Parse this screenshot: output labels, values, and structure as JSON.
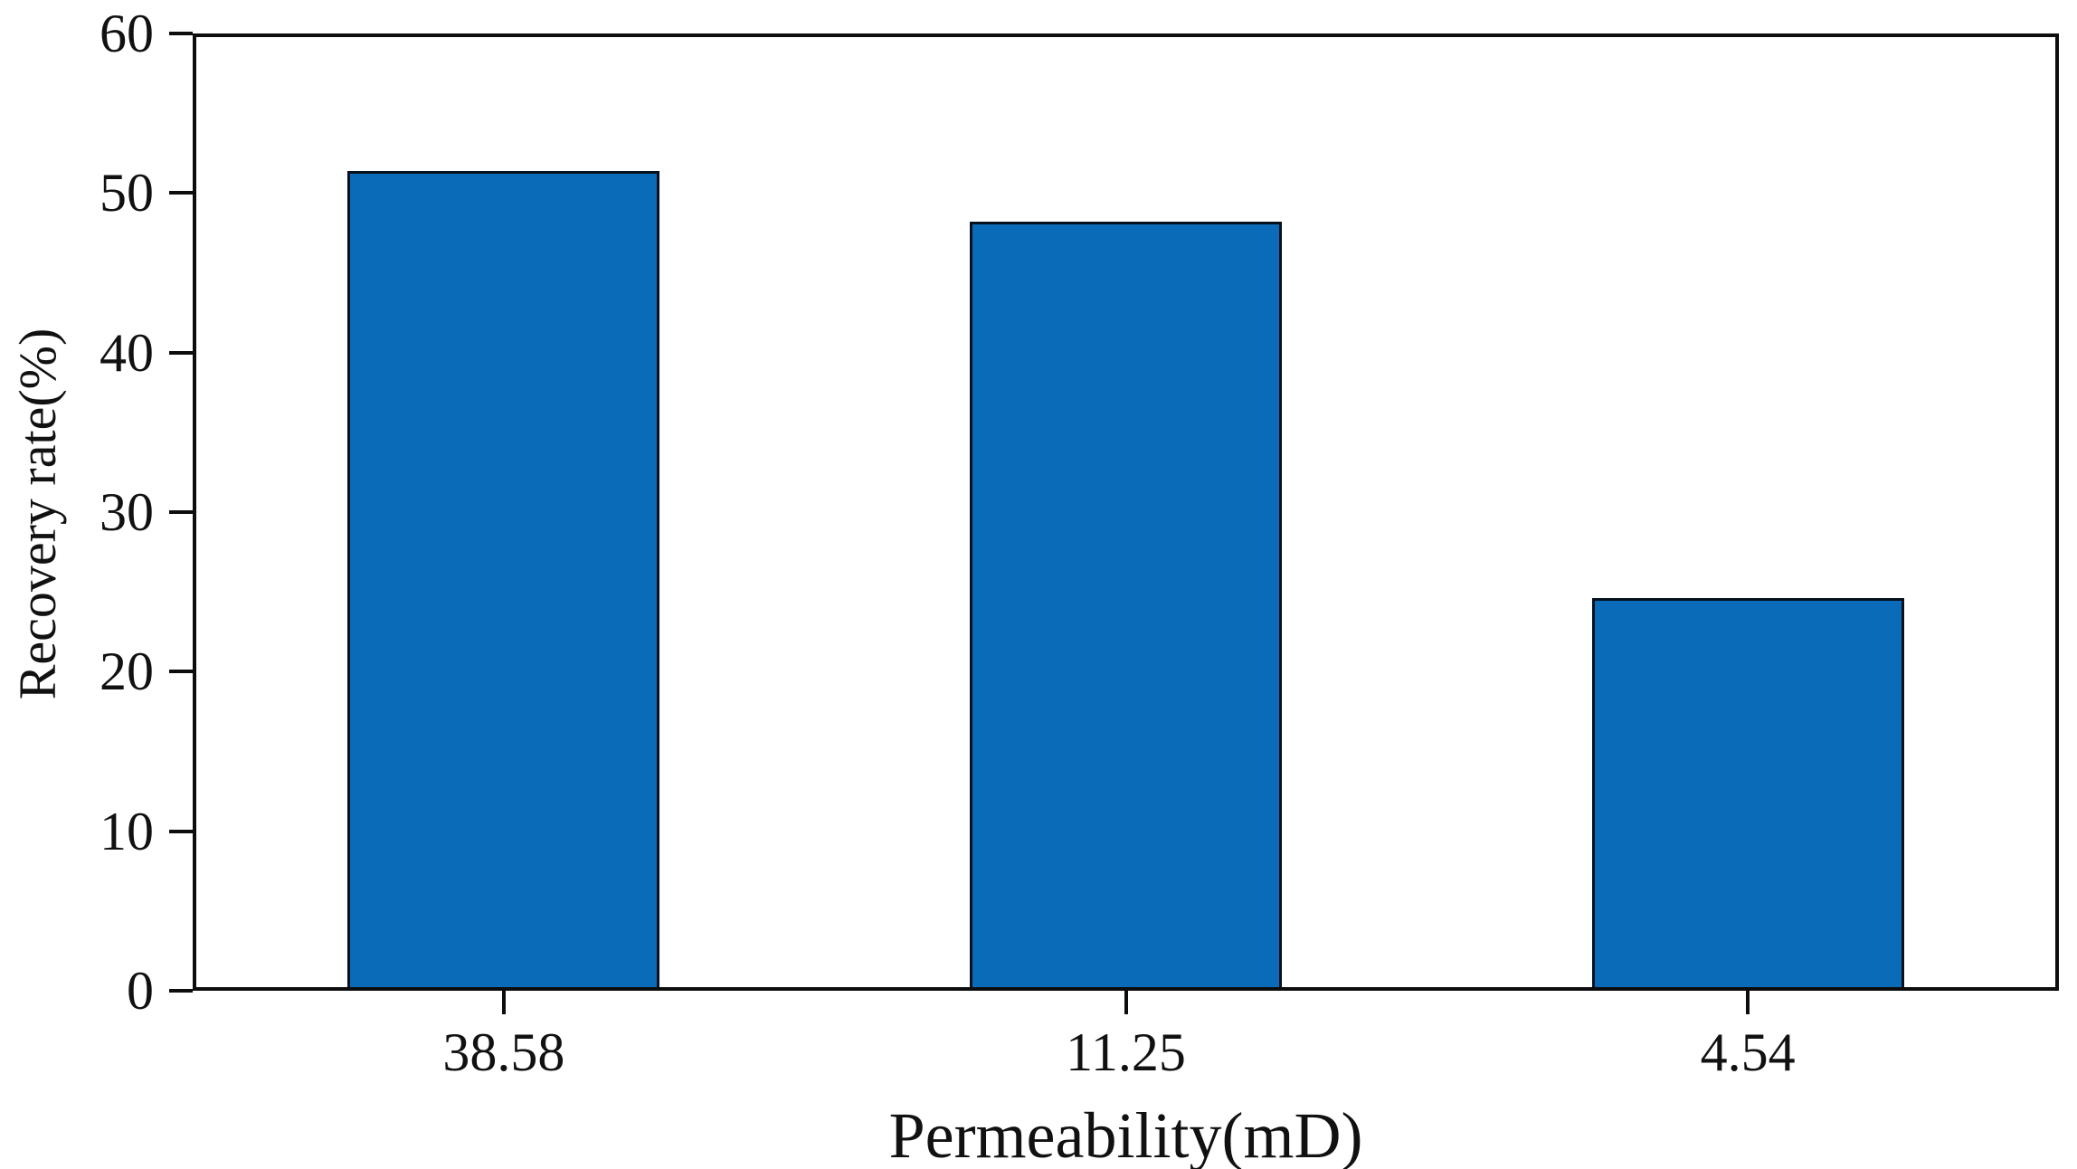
{
  "chart_data": {
    "type": "bar",
    "title": "",
    "categories": [
      "38.58",
      "11.25",
      "4.54"
    ],
    "values": [
      51.4,
      48.2,
      24.6
    ],
    "xlabel": "Permeability(mD)",
    "ylabel": "Recovery rate(%)",
    "ylim": [
      0,
      60
    ],
    "yticks": [
      0,
      10,
      20,
      30,
      40,
      50,
      60
    ],
    "grid": false,
    "legend": null,
    "bar_color": "#0a6bb8",
    "bar_edge_color": "#07101e",
    "axis_color": "#0d0d0d",
    "text_color": "#111111",
    "background": "#ffffff"
  }
}
